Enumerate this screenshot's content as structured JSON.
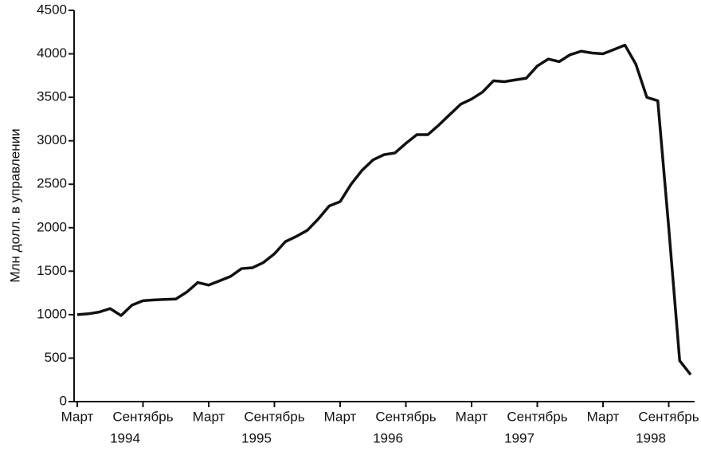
{
  "chart_data": {
    "type": "line",
    "ylabel": "Млн долл. в управлении",
    "categories": [
      "Март",
      null,
      null,
      null,
      null,
      null,
      "Сентябрь",
      null,
      null,
      null,
      null,
      null,
      "Март",
      null,
      null,
      null,
      null,
      null,
      "Сентябрь",
      null,
      null,
      null,
      null,
      null,
      "Март",
      null,
      null,
      null,
      null,
      null,
      "Сентябрь",
      null,
      null,
      null,
      null,
      null,
      "Март",
      null,
      null,
      null,
      null,
      null,
      "Сентябрь",
      null,
      null,
      null,
      null,
      null,
      "Март",
      null,
      null,
      null,
      null,
      null,
      "Сентябрь",
      null,
      null
    ],
    "years": [
      "1994",
      "1995",
      "1996",
      "1997",
      "1998"
    ],
    "series": [
      {
        "color": "#111111",
        "values": [
          1000,
          1010,
          1030,
          1070,
          990,
          1110,
          1160,
          1170,
          1175,
          1180,
          1260,
          1370,
          1340,
          1390,
          1440,
          1530,
          1540,
          1600,
          1700,
          1840,
          1900,
          1970,
          2100,
          2250,
          2300,
          2500,
          2660,
          2780,
          2840,
          2860,
          2970,
          3070,
          3070,
          3180,
          3300,
          3420,
          3480,
          3560,
          3690,
          3680,
          3700,
          3720,
          3860,
          3940,
          3910,
          3990,
          4030,
          4010,
          4000,
          4050,
          4100,
          3880,
          3500,
          3460,
          2000,
          470,
          310
        ]
      }
    ],
    "ylim": [
      0,
      4500
    ],
    "yticks": [
      0,
      500,
      1000,
      1500,
      2000,
      2500,
      3000,
      3500,
      4000,
      4500
    ],
    "grid": false
  }
}
